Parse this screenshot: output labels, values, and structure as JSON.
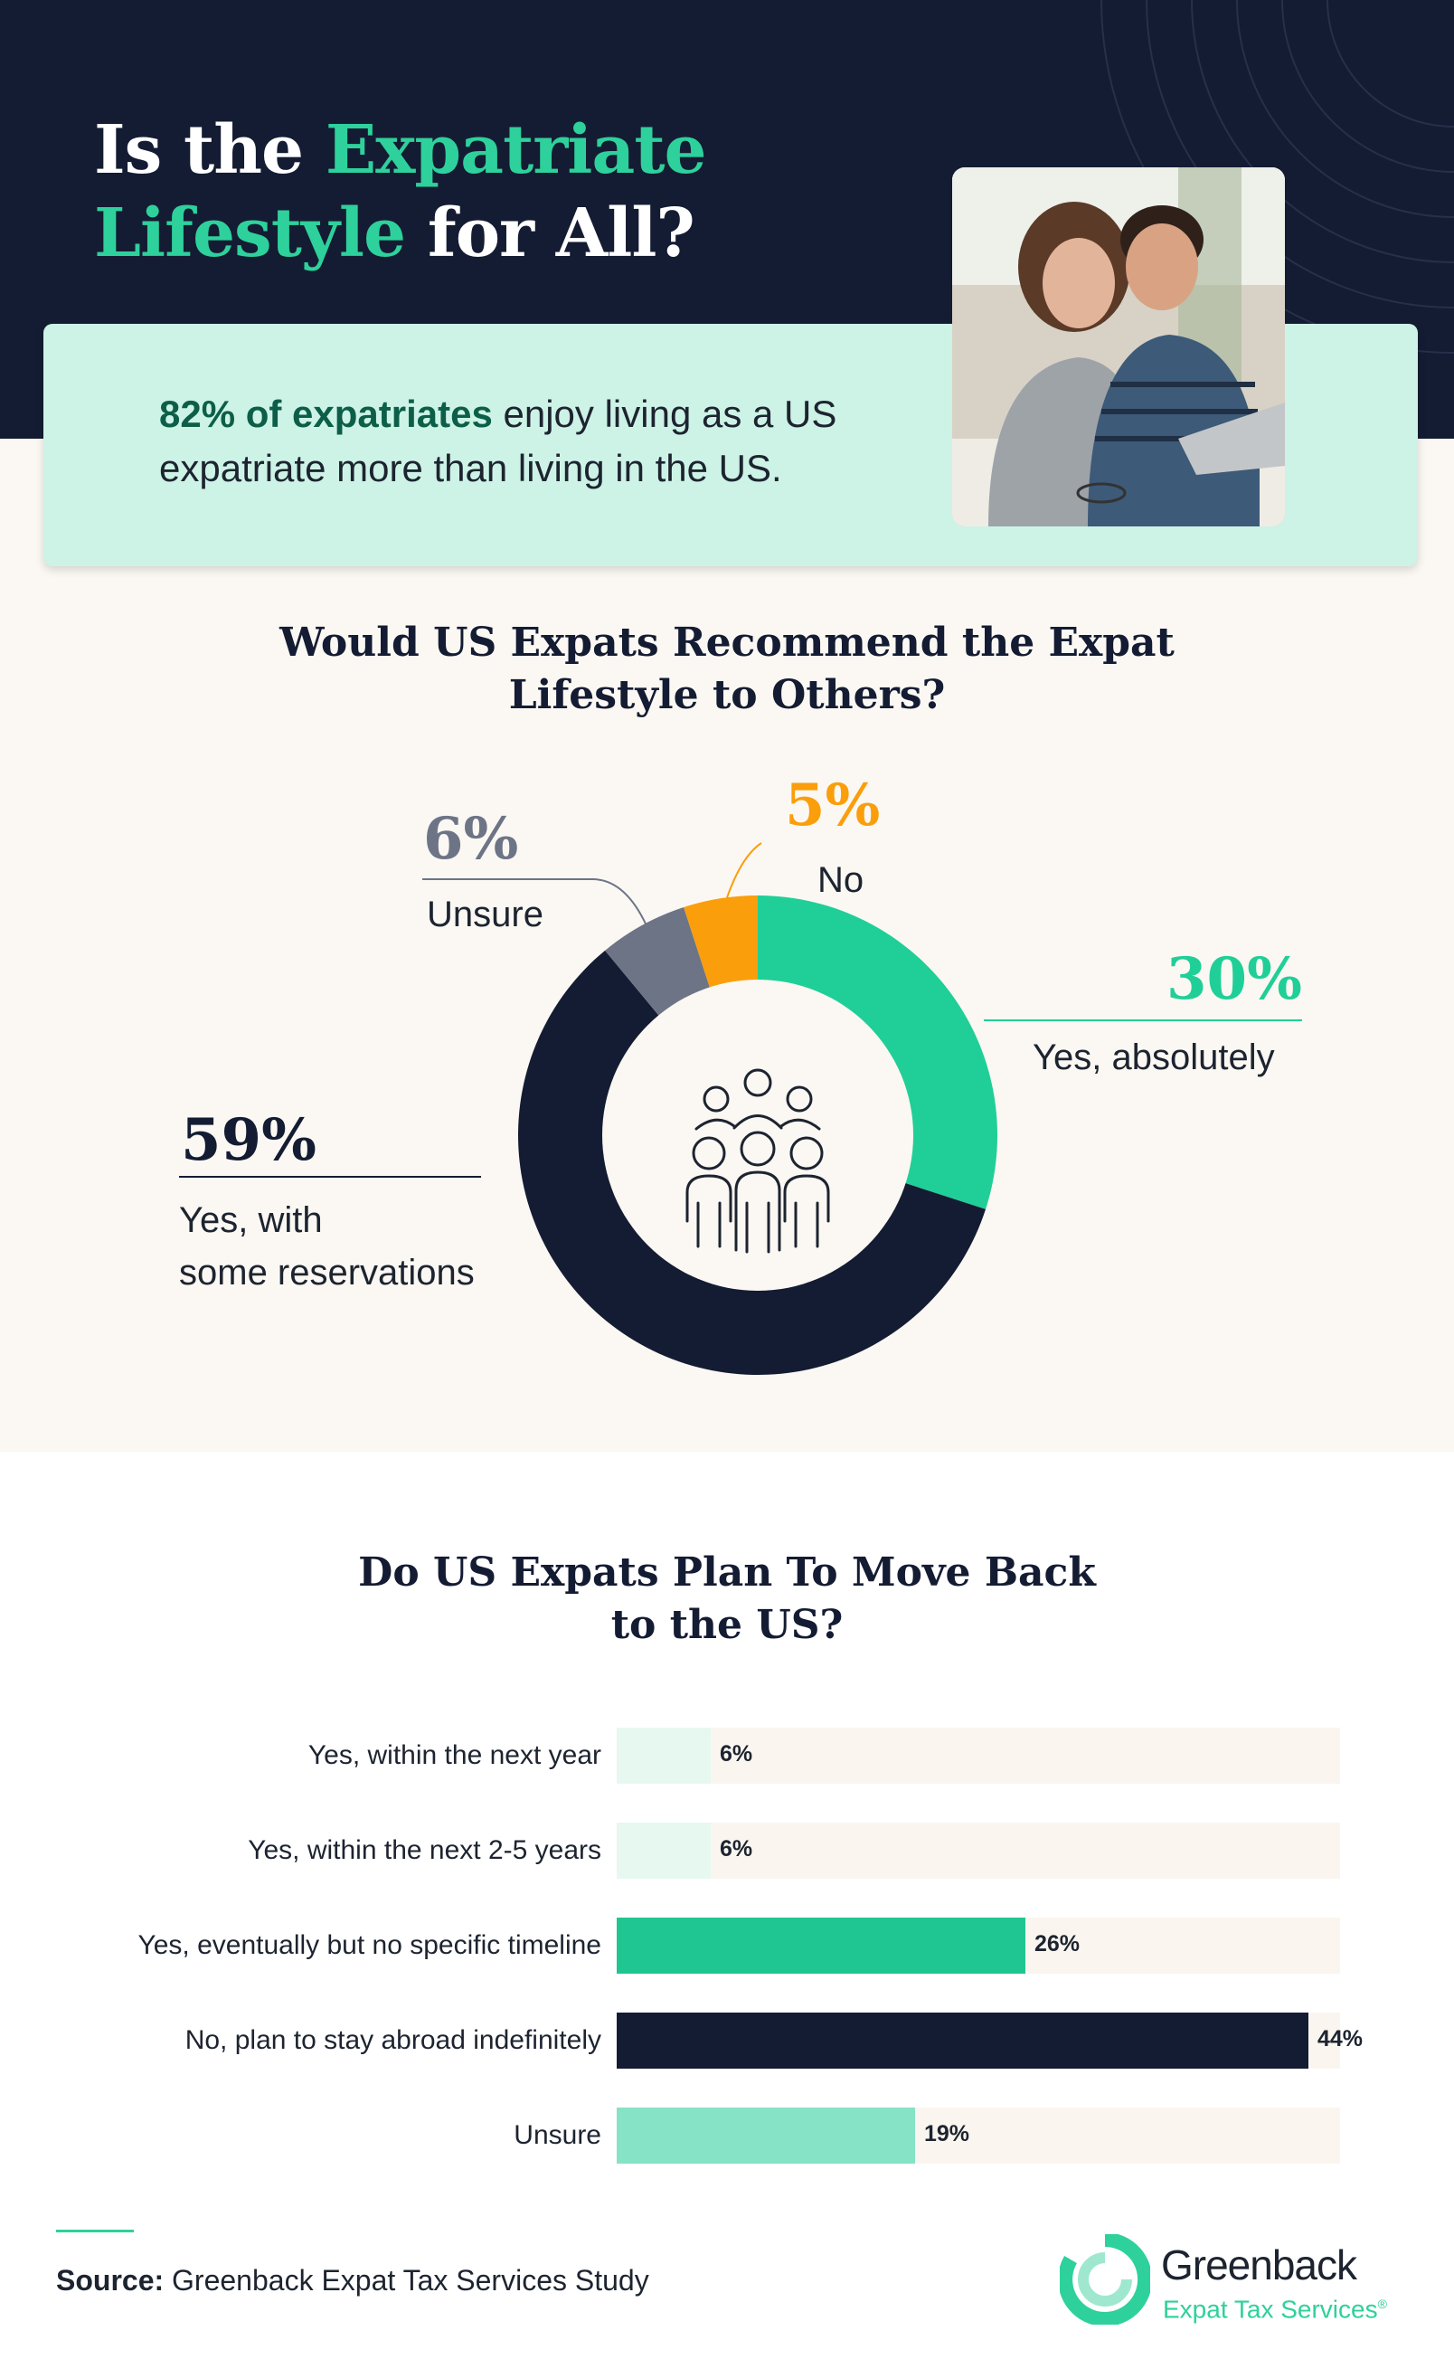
{
  "title": {
    "line1_plain": "Is the ",
    "line1_highlight": "Expatriate",
    "line2_highlight": "Lifestyle",
    "line2_plain": " for All?"
  },
  "callout": {
    "bold": "82% of expatriates",
    "rest": " enjoy living as a US expatriate more than living in the US."
  },
  "colors": {
    "navy": "#141c33",
    "green": "#20cf97",
    "orange": "#fb9e0c",
    "gray": "#6d7486",
    "mint_light": "#e7f8f1",
    "mint_mid": "#86e3c5",
    "cream": "#fbf8f3"
  },
  "icons": [
    "people-group-icon",
    "greenback-logo-icon"
  ],
  "chart_data": [
    {
      "type": "pie",
      "style": "donut",
      "title": "Would US Expats Recommend the Expat Lifestyle to Others?",
      "categories": [
        "Yes, absolutely",
        "Yes, with some reservations",
        "Unsure",
        "No"
      ],
      "values": [
        30,
        59,
        6,
        5
      ],
      "labels": [
        "30%",
        "59%",
        "6%",
        "5%"
      ],
      "colors": [
        "#20cf97",
        "#141c33",
        "#6d7486",
        "#fb9e0c"
      ],
      "label_lines": {
        "reservations": [
          "Yes, with",
          "some reservations"
        ]
      }
    },
    {
      "type": "bar",
      "orientation": "horizontal",
      "title": "Do US Expats Plan To Move Back to the US?",
      "categories": [
        "Yes, within the next year",
        "Yes, within the next 2-5 years",
        "Yes, eventually but no specific timeline",
        "No, plan to stay abroad indefinitely",
        "Unsure"
      ],
      "values": [
        6,
        6,
        26,
        44,
        19
      ],
      "labels": [
        "6%",
        "6%",
        "26%",
        "44%",
        "19%"
      ],
      "colors": [
        "#e7f8f1",
        "#e7f8f1",
        "#20c692",
        "#141c33",
        "#86e3c5"
      ],
      "xlim": [
        0,
        46
      ]
    }
  ],
  "footer": {
    "source_label": "Source:",
    "source_text": " Greenback Expat Tax Services Study",
    "logo_name": "Greenback",
    "logo_sub": "Expat Tax Services",
    "logo_mark": "®"
  }
}
